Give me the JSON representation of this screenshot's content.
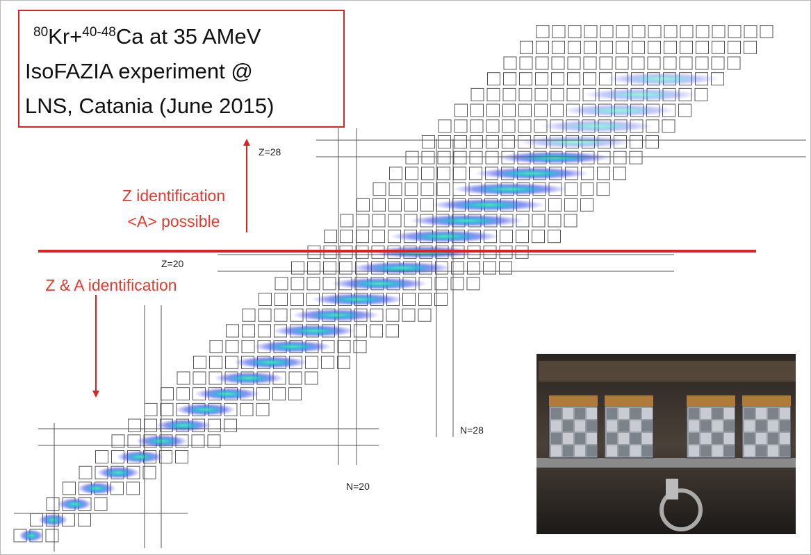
{
  "title_box": {
    "line1": {
      "mass": "80",
      "projectile": "Kr+",
      "target_mass": "40-48",
      "rest": "Ca at 35 AMeV"
    },
    "line2": "IsoFAZIA experiment @",
    "line3": "LNS, Catania (June 2015)"
  },
  "labels": {
    "z28": "Z=28",
    "z20": "Z=20",
    "n28": "N=28",
    "n20": "N=20"
  },
  "annotations": {
    "upper": [
      "Z identification",
      "<A> possible"
    ],
    "lower": "Z & A identification"
  }
}
